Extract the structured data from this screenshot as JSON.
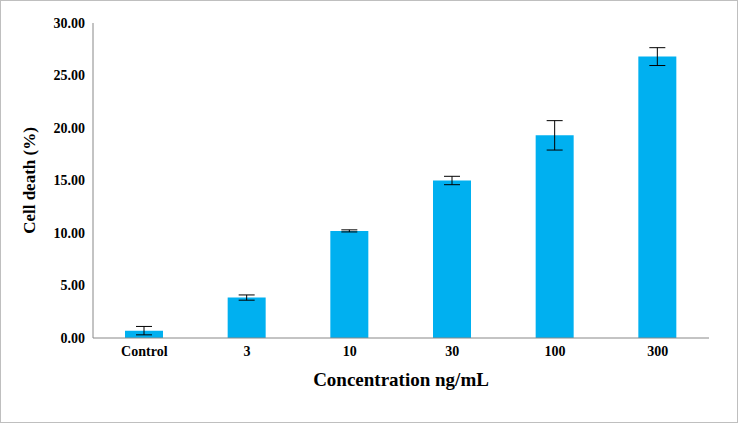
{
  "chart_data": {
    "type": "bar",
    "categories": [
      "Control",
      "3",
      "10",
      "30",
      "100",
      "300"
    ],
    "values": [
      0.7,
      3.85,
      10.2,
      15.0,
      19.3,
      26.8
    ],
    "errors": [
      0.4,
      0.25,
      0.1,
      0.4,
      1.4,
      0.85
    ],
    "color": "#00b0f0",
    "x_label": "Concentration ng/mL",
    "y_label": "Cell death (%)",
    "ylim": [
      0,
      30
    ],
    "yticks": [
      {
        "value": 0,
        "label": "0.00"
      },
      {
        "value": 5,
        "label": "5.00"
      },
      {
        "value": 10,
        "label": "10.00"
      },
      {
        "value": 15,
        "label": "15.00"
      },
      {
        "value": 20,
        "label": "20.00"
      },
      {
        "value": 25,
        "label": "25.00"
      },
      {
        "value": 30,
        "label": "30.00"
      }
    ],
    "grid": false
  }
}
